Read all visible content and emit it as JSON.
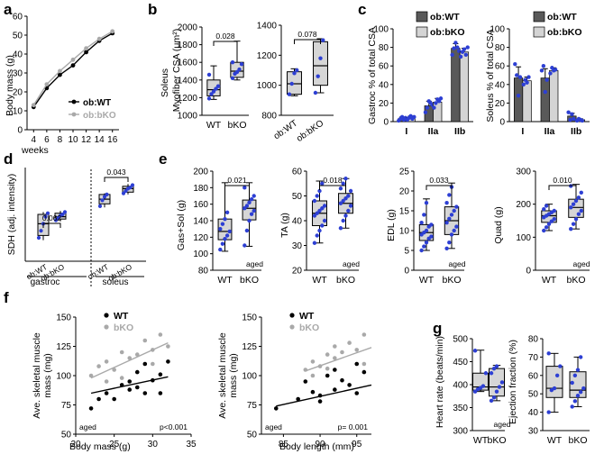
{
  "colors": {
    "blue": "#2d3fd3",
    "box": "#d6d6d6",
    "dark": "#595959",
    "light": "#d4d4d4",
    "gray": "#a9a9a9",
    "black": "#000000"
  },
  "panels": {
    "a": "a",
    "b": "b",
    "c": "c",
    "d": "d",
    "e": "e",
    "f": "f",
    "g": "g"
  },
  "chart_data": [
    {
      "id": "a",
      "type": "line",
      "title": "",
      "xlabel": "weeks",
      "ylabel": "Body mass (g)",
      "xlim": [
        3,
        17
      ],
      "ylim": [
        0,
        60
      ],
      "xticks": [
        "4",
        "6",
        "8",
        "10",
        "12",
        "14",
        "16"
      ],
      "yticks": [
        "0",
        "10",
        "20",
        "30",
        "40",
        "50",
        "60"
      ],
      "x": [
        4,
        6,
        8,
        10,
        12,
        14,
        16
      ],
      "series": [
        {
          "name": "ob:WT",
          "color": "#000000",
          "values": [
            12,
            22,
            29,
            34,
            41,
            47,
            51
          ]
        },
        {
          "name": "ob:bKO",
          "color": "#a9a9a9",
          "values": [
            13,
            24,
            31,
            37,
            43,
            48,
            52
          ]
        }
      ]
    },
    {
      "id": "b1",
      "type": "box",
      "ylabel": "Myofiber CSA (μm²)",
      "ylabel2": "Soleus",
      "ylim": [
        1000,
        2000
      ],
      "yticks": [
        "1000",
        "1200",
        "1400",
        "1600",
        "1800",
        "2000"
      ],
      "categories": [
        "WT",
        "bKO"
      ],
      "pvalue": "0.028",
      "boxes": [
        {
          "min": 1180,
          "q1": 1220,
          "median": 1290,
          "q3": 1400,
          "max": 1560,
          "points": [
            1190,
            1240,
            1270,
            1300,
            1330,
            1460
          ]
        },
        {
          "min": 1400,
          "q1": 1430,
          "median": 1500,
          "q3": 1600,
          "max": 1840,
          "points": [
            1420,
            1470,
            1490,
            1520,
            1580,
            1600
          ]
        }
      ]
    },
    {
      "id": "b2",
      "type": "box",
      "ylabel": "",
      "ylim": [
        800,
        1400
      ],
      "yticks": [
        "800",
        "1000",
        "1200",
        "1400"
      ],
      "categories": [
        "ob:WT",
        "ob:bKO"
      ],
      "pvalue": "0.078",
      "boxes": [
        {
          "min": 930,
          "q1": 940,
          "median": 1010,
          "q3": 1090,
          "max": 1110,
          "points": [
            940,
            1010,
            1080,
            1100
          ]
        },
        {
          "min": 950,
          "q1": 1000,
          "median": 1130,
          "q3": 1290,
          "max": 1310,
          "points": [
            950,
            1060,
            1180,
            1300
          ]
        }
      ]
    },
    {
      "id": "c1",
      "type": "bar",
      "ylabel": "Gastroc % of total CSA",
      "ylim": [
        0,
        100
      ],
      "yticks": [
        "0",
        "20",
        "40",
        "60",
        "80",
        "100"
      ],
      "categories": [
        "I",
        "IIa",
        "IIb"
      ],
      "series": [
        {
          "name": "ob:WT",
          "color": "#595959",
          "values": [
            3,
            17,
            79
          ],
          "err": [
            2,
            5,
            5
          ]
        },
        {
          "name": "ob:bKO",
          "color": "#d4d4d4",
          "values": [
            4,
            21,
            75
          ],
          "err": [
            2,
            4,
            4
          ]
        }
      ],
      "points": [
        [
          [
            1,
            3,
            5,
            2,
            4
          ],
          [
            10,
            15,
            22,
            20,
            18
          ],
          [
            72,
            79,
            85,
            80,
            76
          ]
        ],
        [
          [
            2,
            4,
            6,
            3,
            5
          ],
          [
            15,
            20,
            24,
            22,
            25
          ],
          [
            70,
            75,
            78,
            72,
            80
          ]
        ]
      ]
    },
    {
      "id": "c2",
      "type": "bar",
      "ylabel": "Soleus % of total CSA",
      "ylim": [
        0,
        100
      ],
      "yticks": [
        "0",
        "20",
        "40",
        "60",
        "80",
        "100"
      ],
      "categories": [
        "I",
        "IIa",
        "IIb"
      ],
      "series": [
        {
          "name": "ob:WT",
          "color": "#595959",
          "values": [
            47,
            47,
            6
          ],
          "err": [
            12,
            10,
            3
          ]
        },
        {
          "name": "ob:bKO",
          "color": "#d4d4d4",
          "values": [
            44,
            55,
            2
          ],
          "err": [
            4,
            3,
            1
          ]
        }
      ],
      "points": [
        [
          [
            62,
            50,
            28,
            48
          ],
          [
            55,
            60,
            32,
            45
          ],
          [
            10,
            2,
            8,
            3
          ]
        ],
        [
          [
            40,
            45,
            42,
            48
          ],
          [
            52,
            58,
            55,
            56
          ],
          [
            1,
            3,
            2,
            1
          ]
        ]
      ]
    },
    {
      "id": "d",
      "type": "box",
      "ylabel": "SDH (adj. intensity)",
      "ylim": [
        0,
        0.8
      ],
      "yticks": [],
      "categories": [
        "ob:WT",
        "ob:bKO",
        "ob:WT",
        "ob:bKO"
      ],
      "groups": [
        "gastroc",
        "soleus"
      ],
      "pvalues": [
        "0.062",
        "0.043"
      ],
      "boxes": [
        {
          "min": 0.18,
          "q1": 0.22,
          "median": 0.32,
          "q3": 0.4,
          "max": 0.42,
          "points": [
            0.2,
            0.26,
            0.32,
            0.38,
            0.41
          ]
        },
        {
          "min": 0.34,
          "q1": 0.36,
          "median": 0.38,
          "q3": 0.41,
          "max": 0.43,
          "points": [
            0.35,
            0.37,
            0.39,
            0.4,
            0.42
          ]
        },
        {
          "min": 0.46,
          "q1": 0.49,
          "median": 0.53,
          "q3": 0.57,
          "max": 0.58,
          "points": [
            0.47,
            0.52,
            0.55,
            0.57
          ]
        },
        {
          "min": 0.57,
          "q1": 0.59,
          "median": 0.62,
          "q3": 0.64,
          "max": 0.66,
          "points": [
            0.58,
            0.6,
            0.62,
            0.63,
            0.65
          ]
        }
      ]
    },
    {
      "id": "e1",
      "type": "box",
      "ylabel": "Gas+Sol (g)",
      "ylim": [
        80,
        200
      ],
      "yticks": [
        "80",
        "100",
        "120",
        "140",
        "160",
        "180",
        "200"
      ],
      "categories": [
        "WT",
        "bKO"
      ],
      "pvalue": "0.021",
      "note": "aged",
      "boxes": [
        {
          "min": 103,
          "q1": 117,
          "median": 127,
          "q3": 142,
          "max": 186,
          "points": [
            105,
            112,
            118,
            122,
            127,
            130,
            136,
            142,
            150
          ]
        },
        {
          "min": 109,
          "q1": 141,
          "median": 155,
          "q3": 165,
          "max": 186,
          "points": [
            110,
            128,
            140,
            148,
            152,
            155,
            158,
            162,
            166,
            170,
            180
          ]
        }
      ]
    },
    {
      "id": "e2",
      "type": "box",
      "ylabel": "TA (g)",
      "ylim": [
        20,
        60
      ],
      "yticks": [
        "20",
        "30",
        "40",
        "50",
        "60"
      ],
      "categories": [
        "WT",
        "bKO"
      ],
      "pvalue": "0.018",
      "note": "aged",
      "boxes": [
        {
          "min": 31,
          "q1": 38,
          "median": 43,
          "q3": 48,
          "max": 56,
          "points": [
            31,
            34,
            36,
            38,
            40,
            42,
            43,
            44,
            45,
            46,
            48,
            50,
            52,
            55
          ]
        },
        {
          "min": 37,
          "q1": 43,
          "median": 47,
          "q3": 51,
          "max": 57,
          "points": [
            37,
            40,
            42,
            44,
            46,
            47,
            48,
            49,
            50,
            52,
            53,
            55,
            57
          ]
        }
      ]
    },
    {
      "id": "e3",
      "type": "box",
      "ylabel": "EDL (g)",
      "ylim": [
        0,
        25
      ],
      "yticks": [
        "0",
        "5",
        "10",
        "15",
        "20",
        "25"
      ],
      "categories": [
        "WT",
        "bKO"
      ],
      "pvalue": "0.033",
      "note": "aged",
      "boxes": [
        {
          "min": 5,
          "q1": 7.5,
          "median": 9.5,
          "q3": 11.5,
          "max": 18,
          "points": [
            5,
            6,
            7,
            8,
            8.5,
            9,
            9.5,
            10,
            11,
            11.5,
            12,
            14,
            17
          ]
        },
        {
          "min": 5.5,
          "q1": 9,
          "median": 12.5,
          "q3": 16,
          "max": 22,
          "points": [
            5.5,
            7,
            9,
            10,
            11,
            12,
            13,
            14,
            15,
            16,
            17,
            19,
            21
          ]
        }
      ]
    },
    {
      "id": "e4",
      "type": "box",
      "ylabel": "Quad (g)",
      "ylim": [
        0,
        300
      ],
      "yticks": [
        "0",
        "100",
        "200",
        "300"
      ],
      "categories": [
        "WT",
        "bKO"
      ],
      "pvalue": "0.010",
      "note": "aged",
      "boxes": [
        {
          "min": 120,
          "q1": 145,
          "median": 165,
          "q3": 180,
          "max": 200,
          "points": [
            120,
            130,
            140,
            148,
            155,
            160,
            165,
            170,
            175,
            180,
            185,
            195
          ]
        },
        {
          "min": 125,
          "q1": 160,
          "median": 190,
          "q3": 215,
          "max": 260,
          "points": [
            125,
            140,
            155,
            170,
            180,
            190,
            200,
            210,
            220,
            235,
            255
          ]
        }
      ]
    },
    {
      "id": "f1",
      "type": "scatter",
      "xlabel": "Body mass (g)",
      "ylabel": "Ave. skeletal muscle mass (mg)",
      "xlim": [
        20,
        35
      ],
      "ylim": [
        50,
        150
      ],
      "xticks": [
        "20",
        "25",
        "30",
        "35"
      ],
      "yticks": [
        "50",
        "75",
        "100",
        "125",
        "150"
      ],
      "note": "aged",
      "pvalue": "p<0.001",
      "series": [
        {
          "name": "WT",
          "color": "#000000",
          "line": [
            [
              22,
              85
            ],
            [
              32,
              99
            ]
          ],
          "points": [
            [
              22,
              72
            ],
            [
              23,
              80
            ],
            [
              24,
              85
            ],
            [
              25,
              80
            ],
            [
              26,
              92
            ],
            [
              27,
              95
            ],
            [
              27,
              88
            ],
            [
              28,
              103
            ],
            [
              28,
              90
            ],
            [
              29,
              85
            ],
            [
              29,
              110
            ],
            [
              30,
              96
            ],
            [
              31,
              101
            ],
            [
              31,
              85
            ],
            [
              32,
              112
            ]
          ]
        },
        {
          "name": "bKO",
          "color": "#a9a9a9",
          "line": [
            [
              22,
              98
            ],
            [
              32,
              128
            ]
          ],
          "points": [
            [
              22,
              100
            ],
            [
              23,
              108
            ],
            [
              24,
              112
            ],
            [
              25,
              105
            ],
            [
              26,
              120
            ],
            [
              27,
              115
            ],
            [
              28,
              118
            ],
            [
              29,
              130
            ],
            [
              30,
              122
            ],
            [
              30,
              110
            ],
            [
              31,
              135
            ],
            [
              32,
              125
            ],
            [
              24,
              95
            ],
            [
              26,
              98
            ]
          ]
        }
      ]
    },
    {
      "id": "f2",
      "type": "scatter",
      "xlabel": "Body length (mm)",
      "ylabel": "Ave. skeletal muscle mass (mg)",
      "xlim": [
        82,
        97
      ],
      "ylim": [
        50,
        150
      ],
      "xticks": [
        "85",
        "90",
        "95"
      ],
      "yticks": [
        "50",
        "75",
        "100",
        "125",
        "150"
      ],
      "note": "aged",
      "pvalue": "p= 0.001",
      "series": [
        {
          "name": "WT",
          "color": "#000000",
          "line": [
            [
              84,
              74
            ],
            [
              97,
              92
            ]
          ],
          "points": [
            [
              84,
              72
            ],
            [
              87,
              80
            ],
            [
              88,
              95
            ],
            [
              89,
              86
            ],
            [
              90,
              83
            ],
            [
              91,
              100
            ],
            [
              92,
              88
            ],
            [
              92,
              105
            ],
            [
              93,
              96
            ],
            [
              94,
              92
            ],
            [
              95,
              110
            ],
            [
              95,
              85
            ],
            [
              96,
              103
            ],
            [
              90,
              78
            ]
          ]
        },
        {
          "name": "bKO",
          "color": "#a9a9a9",
          "line": [
            [
              88,
              104
            ],
            [
              97,
              124
            ]
          ],
          "points": [
            [
              88,
              105
            ],
            [
              89,
              112
            ],
            [
              90,
              108
            ],
            [
              91,
              118
            ],
            [
              92,
              115
            ],
            [
              92,
              125
            ],
            [
              93,
              120
            ],
            [
              94,
              128
            ],
            [
              95,
              122
            ],
            [
              96,
              135
            ],
            [
              96,
              110
            ],
            [
              89,
              100
            ],
            [
              91,
              106
            ]
          ]
        }
      ]
    },
    {
      "id": "g1",
      "type": "box",
      "ylabel": "Heart rate (beats/min)",
      "ylim": [
        300,
        500
      ],
      "yticks": [
        "300",
        "350",
        "400",
        "450",
        "500"
      ],
      "categories": [
        "WT",
        "bKO"
      ],
      "note": "aged",
      "boxes": [
        {
          "min": 385,
          "q1": 388,
          "median": 395,
          "q3": 425,
          "max": 475,
          "points": [
            385,
            390,
            393,
            397,
            425,
            474
          ]
        },
        {
          "min": 365,
          "q1": 375,
          "median": 395,
          "q3": 435,
          "max": 442,
          "points": [
            365,
            372,
            385,
            395,
            405,
            425,
            435,
            440
          ]
        }
      ]
    },
    {
      "id": "g2",
      "type": "box",
      "ylabel": "Ejection fraction (%)",
      "ylim": [
        30,
        80
      ],
      "yticks": [
        "30",
        "40",
        "50",
        "60",
        "70",
        "80"
      ],
      "categories": [
        "WT",
        "bKO"
      ],
      "boxes": [
        {
          "min": 40,
          "q1": 48,
          "median": 53,
          "q3": 65,
          "max": 72,
          "points": [
            40,
            52,
            53,
            60,
            65,
            72
          ]
        },
        {
          "min": 43,
          "q1": 48,
          "median": 52,
          "q3": 62,
          "max": 70,
          "points": [
            43,
            46,
            49,
            51,
            53,
            56,
            60,
            63,
            70
          ]
        }
      ]
    }
  ]
}
